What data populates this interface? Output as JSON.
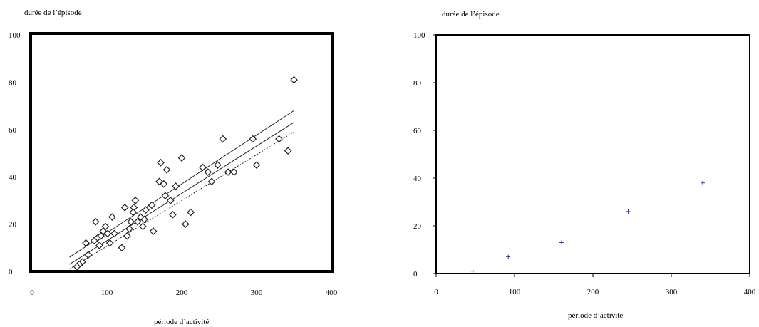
{
  "chart_data": [
    {
      "type": "scatter",
      "ylabel": "durée de l’épisode",
      "xlabel": "période d’activité",
      "xlim": [
        0,
        400
      ],
      "ylim": [
        0,
        100
      ],
      "x_ticks": [
        "0",
        "100",
        "200",
        "300",
        "400"
      ],
      "y_ticks": [
        "0",
        "20",
        "40",
        "60",
        "80",
        "100"
      ],
      "grid": false,
      "marker": "diamond",
      "points": [
        [
          350,
          81
        ],
        [
          342,
          51
        ],
        [
          330,
          56
        ],
        [
          300,
          45
        ],
        [
          295,
          56
        ],
        [
          270,
          42
        ],
        [
          262,
          42
        ],
        [
          255,
          56
        ],
        [
          248,
          45
        ],
        [
          240,
          38
        ],
        [
          235,
          42
        ],
        [
          228,
          44
        ],
        [
          212,
          25
        ],
        [
          205,
          20
        ],
        [
          200,
          48
        ],
        [
          192,
          36
        ],
        [
          188,
          24
        ],
        [
          185,
          30
        ],
        [
          180,
          43
        ],
        [
          178,
          32
        ],
        [
          176,
          37
        ],
        [
          172,
          46
        ],
        [
          170,
          38
        ],
        [
          162,
          17
        ],
        [
          160,
          28
        ],
        [
          152,
          26
        ],
        [
          150,
          22
        ],
        [
          148,
          19
        ],
        [
          145,
          23
        ],
        [
          141,
          21
        ],
        [
          138,
          30
        ],
        [
          136,
          27
        ],
        [
          135,
          25
        ],
        [
          132,
          21
        ],
        [
          130,
          18
        ],
        [
          127,
          15
        ],
        [
          124,
          27
        ],
        [
          120,
          10
        ],
        [
          110,
          16
        ],
        [
          107,
          23
        ],
        [
          104,
          12
        ],
        [
          101,
          16
        ],
        [
          98,
          19
        ],
        [
          95,
          17
        ],
        [
          92,
          15
        ],
        [
          90,
          11
        ],
        [
          87,
          14
        ],
        [
          85,
          21
        ],
        [
          83,
          13
        ],
        [
          75,
          7
        ],
        [
          72,
          12
        ],
        [
          67,
          4
        ],
        [
          63,
          3
        ],
        [
          60,
          2
        ]
      ],
      "fit_lines": [
        {
          "name": "",
          "x": [
            50,
            350
          ],
          "y": [
            3,
            63
          ],
          "style": "solid"
        },
        {
          "name": "",
          "x": [
            50,
            350
          ],
          "y": [
            6,
            68
          ],
          "style": "solid"
        },
        {
          "name": "",
          "x": [
            50,
            350
          ],
          "y": [
            1,
            59
          ],
          "style": "dashed"
        }
      ]
    },
    {
      "type": "scatter",
      "ylabel": "durée de l’épisode",
      "xlabel": "période d’activité",
      "xlim": [
        0,
        400
      ],
      "ylim": [
        0,
        100
      ],
      "x_ticks": [
        "0",
        "100",
        "200",
        "300",
        "400"
      ],
      "y_ticks": [
        "0",
        "20",
        "40",
        "60",
        "80",
        "100"
      ],
      "grid": false,
      "marker": "plus",
      "marker_color": "#3333cc",
      "points": [
        [
          47,
          1
        ],
        [
          92,
          7
        ],
        [
          160,
          13
        ],
        [
          245,
          26
        ],
        [
          340,
          38
        ]
      ]
    }
  ]
}
